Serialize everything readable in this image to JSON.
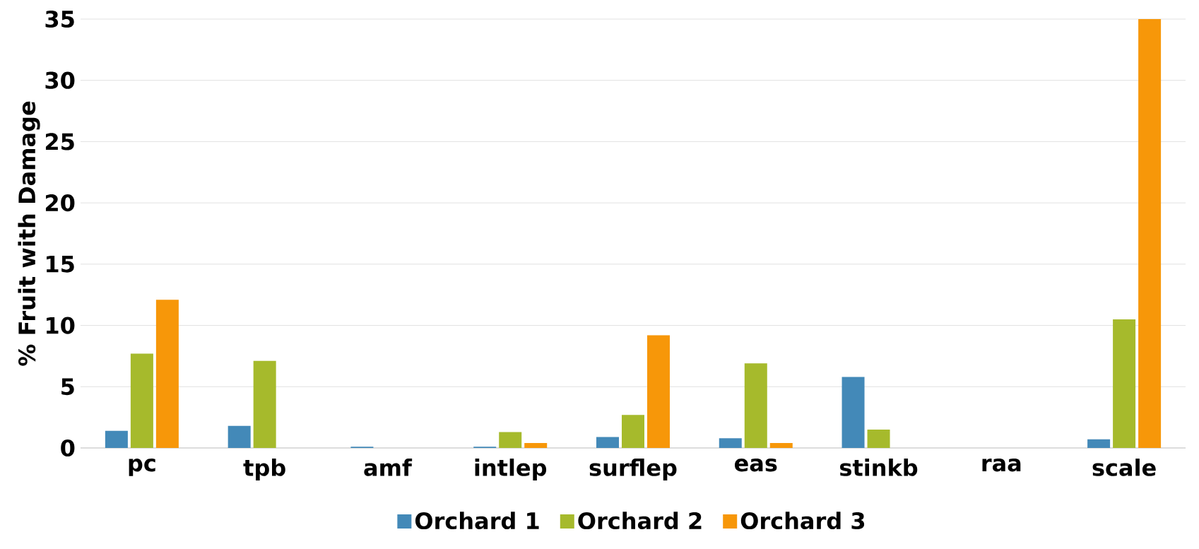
{
  "chart_data": {
    "type": "bar",
    "ylabel": "% Fruit with Damage",
    "categories": [
      "pc",
      "tpb",
      "amf",
      "intlep",
      "surflep",
      "eas",
      "stinkb",
      "raa",
      "scale"
    ],
    "series": [
      {
        "name": "Orchard 1",
        "color": "#4389b8",
        "values": [
          1.4,
          1.8,
          0.1,
          0.1,
          0.9,
          0.8,
          5.8,
          0,
          0.7
        ]
      },
      {
        "name": "Orchard 2",
        "color": "#a6ba2c",
        "values": [
          7.7,
          7.1,
          0,
          1.3,
          2.7,
          6.9,
          1.5,
          0,
          10.5
        ]
      },
      {
        "name": "Orchard 3",
        "color": "#f79709",
        "values": [
          12.1,
          0,
          0,
          0.4,
          9.2,
          0.4,
          0,
          0,
          35
        ]
      }
    ],
    "ylim": [
      0,
      35
    ],
    "yticks": [
      0,
      5,
      10,
      15,
      20,
      25,
      30,
      35
    ],
    "grid": "y",
    "legend": "bottom"
  }
}
